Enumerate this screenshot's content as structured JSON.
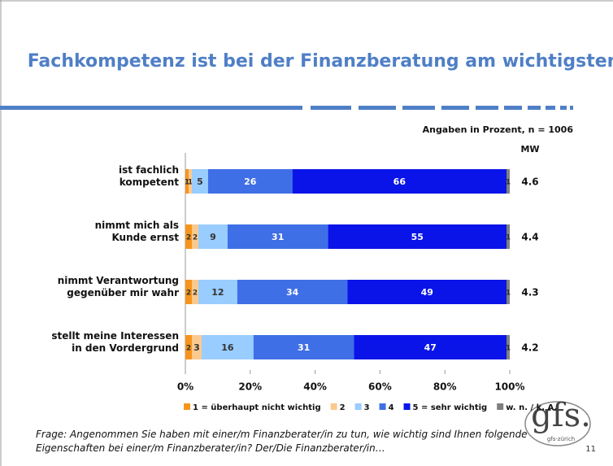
{
  "header": {
    "title": "Fachkompetenz ist bei der Finanzberatung am wichtigsten"
  },
  "chart_data": {
    "type": "bar",
    "orientation": "horizontal",
    "stacked": true,
    "subtitle": "Angaben in Prozent, n = 1006",
    "mean_label": "MW",
    "categories": [
      "ist fachlich\nkompetent",
      "nimmt mich als\nKunde ernst",
      "nimmt Verantwortung\ngegenüber mir wahr",
      "stellt meine Interessen\nin den Vordergrund"
    ],
    "series": [
      {
        "name": "1 = überhaupt nicht wichtig",
        "color": "#f7941d",
        "values": [
          1,
          2,
          2,
          2
        ]
      },
      {
        "name": "2",
        "color": "#fbc98e",
        "values": [
          1,
          2,
          2,
          3
        ]
      },
      {
        "name": "3",
        "color": "#99ccff",
        "values": [
          5,
          9,
          12,
          16
        ]
      },
      {
        "name": "4",
        "color": "#3f6fe6",
        "values": [
          26,
          31,
          34,
          31
        ]
      },
      {
        "name": "5 = sehr wichtig",
        "color": "#0a14e8",
        "values": [
          66,
          55,
          49,
          47
        ]
      },
      {
        "name": "w. n. / k. A.",
        "color": "#7f7f7f",
        "values": [
          1,
          1,
          1,
          1
        ]
      }
    ],
    "means": [
      4.6,
      4.4,
      4.3,
      4.2
    ],
    "xlim": [
      0,
      100
    ],
    "xticks": [
      {
        "value": 0,
        "label": "0%"
      },
      {
        "value": 20,
        "label": "20%"
      },
      {
        "value": 40,
        "label": "40%"
      },
      {
        "value": 60,
        "label": "60%"
      },
      {
        "value": 80,
        "label": "80%"
      },
      {
        "value": 100,
        "label": "100%"
      }
    ]
  },
  "footer": {
    "question": "Frage: Angenommen Sie haben mit einer/m Finanzberater/in zu tun, wie wichtig sind Ihnen folgende Eigenschaften bei einer/m Finanzberater/in? Der/Die Finanzberater/in…",
    "page_number": "11"
  },
  "logo": {
    "name": "gfs.",
    "subtitle": "gfs-zürich"
  }
}
